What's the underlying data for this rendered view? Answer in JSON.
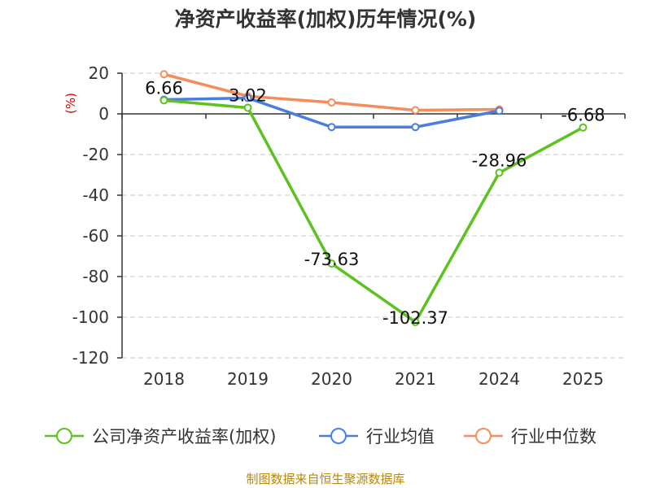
{
  "chart_data": {
    "type": "line",
    "title": "净资产收益率(加权)历年情况(%)",
    "ylabel": "(%)",
    "xlabel": "",
    "categories": [
      "2018",
      "2019",
      "2020",
      "2021",
      "2024",
      "2025"
    ],
    "ylim": [
      -120,
      20
    ],
    "yticks": [
      20,
      0,
      -20,
      -40,
      -60,
      -80,
      -100,
      -120
    ],
    "grid": true,
    "legend_position": "bottom",
    "series": [
      {
        "name": "公司净资产收益率(加权)",
        "color": "#5cc21f",
        "values": [
          6.66,
          3.02,
          -73.63,
          -102.37,
          -28.96,
          -6.68
        ],
        "labels": [
          "6.66",
          "3.02",
          "-73.63",
          "-102.37",
          "-28.96",
          "-6.68"
        ]
      },
      {
        "name": "行业均值",
        "color": "#4a7de0",
        "values": [
          7.0,
          7.8,
          -6.5,
          -6.5,
          1.5,
          null
        ]
      },
      {
        "name": "行业中位数",
        "color": "#f58d5a",
        "values": [
          19.5,
          8.7,
          5.6,
          1.8,
          2.2,
          null
        ]
      }
    ],
    "source": "制图数据来自恒生聚源数据库"
  }
}
